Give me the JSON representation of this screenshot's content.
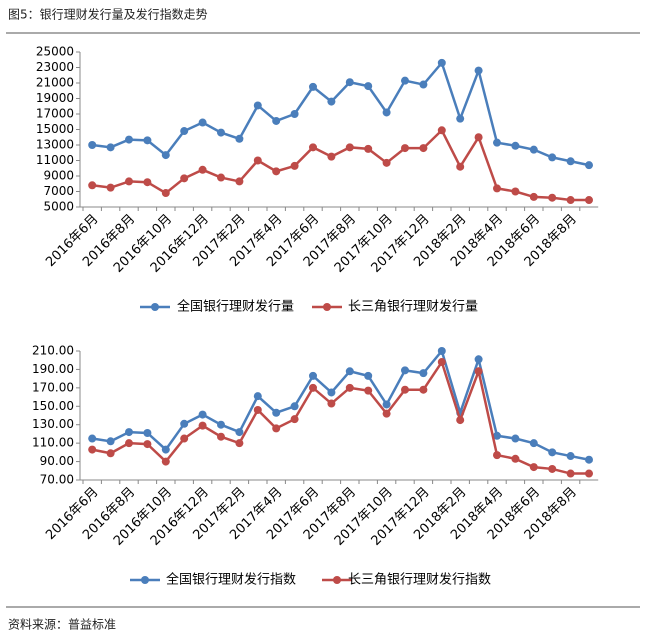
{
  "title": "图5：银行理财发行量及发行指数走势",
  "source": "资料来源：普益标准",
  "chart_data": [
    {
      "type": "line",
      "categories": [
        "2016年6月",
        null,
        "2016年8月",
        null,
        "2016年10月",
        null,
        "2016年12月",
        null,
        "2017年2月",
        null,
        "2017年4月",
        null,
        "2017年6月",
        null,
        "2017年8月",
        null,
        "2017年10月",
        null,
        "2017年12月",
        null,
        "2018年2月",
        null,
        "2018年4月",
        null,
        "2018年6月",
        null,
        "2018年8月",
        null
      ],
      "series": [
        {
          "name": "全国银行理财发行量",
          "color": "#4a7ebb",
          "values": [
            13000,
            12700,
            13700,
            13600,
            11700,
            14800,
            15900,
            14600,
            13800,
            18100,
            16100,
            17000,
            20500,
            18600,
            21100,
            20600,
            17200,
            21300,
            20800,
            23600,
            16400,
            22600,
            13300,
            12900,
            12400,
            11400,
            10900,
            10400
          ]
        },
        {
          "name": "长三角银行理财发行量",
          "color": "#be4b48",
          "values": [
            7800,
            7500,
            8300,
            8200,
            6800,
            8700,
            9800,
            8800,
            8300,
            11000,
            9600,
            10300,
            12700,
            11500,
            12700,
            12500,
            10700,
            12600,
            12600,
            14900,
            10200,
            14000,
            7400,
            7000,
            6300,
            6200,
            5900,
            5900
          ]
        }
      ],
      "ylim": [
        5000,
        25000
      ],
      "yticks": [
        5000,
        7000,
        9000,
        11000,
        13000,
        15000,
        17000,
        19000,
        21000,
        23000,
        25000
      ],
      "legend": "bottom"
    },
    {
      "type": "line",
      "categories": [
        "2016年6月",
        null,
        "2016年8月",
        null,
        "2016年10月",
        null,
        "2016年12月",
        null,
        "2017年2月",
        null,
        "2017年4月",
        null,
        "2017年6月",
        null,
        "2017年8月",
        null,
        "2017年10月",
        null,
        "2017年12月",
        null,
        "2018年2月",
        null,
        "2018年4月",
        null,
        "2018年6月",
        null,
        "2018年8月",
        null
      ],
      "series": [
        {
          "name": "全国银行理财发行指数",
          "color": "#4a7ebb",
          "values": [
            115,
            112,
            122,
            121,
            103,
            131,
            141,
            130,
            122,
            161,
            143,
            150,
            183,
            165,
            188,
            183,
            152,
            189,
            186,
            210,
            143,
            201,
            118,
            115,
            110,
            100,
            96,
            92
          ]
        },
        {
          "name": "长三角银行理财发行指数",
          "color": "#be4b48",
          "values": [
            103,
            99,
            110,
            109,
            90,
            115,
            129,
            117,
            110,
            146,
            126,
            136,
            170,
            153,
            170,
            167,
            142,
            168,
            168,
            198,
            135,
            188,
            97,
            93,
            84,
            82,
            77,
            77
          ]
        }
      ],
      "ylim": [
        70,
        210
      ],
      "yticks": [
        {
          "value": 70,
          "label": "70.00"
        },
        {
          "value": 90,
          "label": "90.00"
        },
        {
          "value": 110,
          "label": "110.00"
        },
        {
          "value": 130,
          "label": "130.00"
        },
        {
          "value": 150,
          "label": "150.00"
        },
        {
          "value": 170,
          "label": "170.00"
        },
        {
          "value": 190,
          "label": "190.00"
        },
        {
          "value": 210,
          "label": "210.00"
        }
      ],
      "legend": "bottom"
    }
  ]
}
